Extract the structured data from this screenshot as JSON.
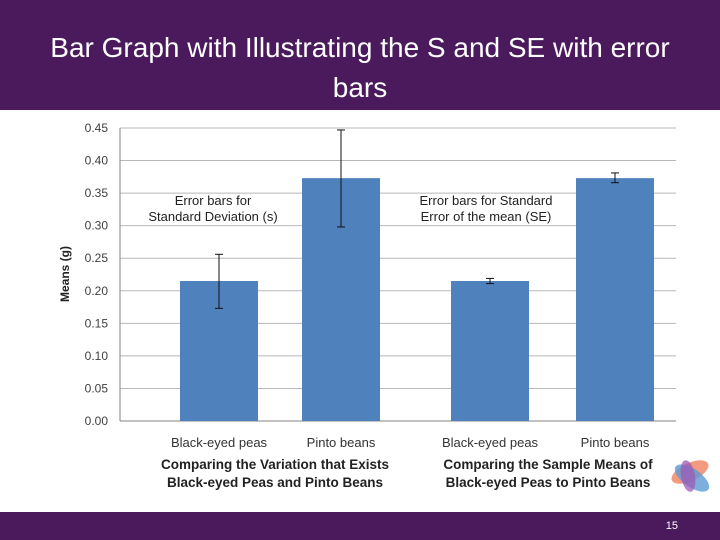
{
  "slide": {
    "title": "Bar Graph with Illustrating the S and SE with error bars",
    "page_number": "15",
    "colors": {
      "header": "#4a1a5c",
      "bar": "#4f81bd"
    }
  },
  "chart_data": {
    "type": "bar",
    "ylabel": "Means (g)",
    "ylim": [
      0,
      0.45
    ],
    "yticks": [
      "0.00",
      "0.05",
      "0.10",
      "0.15",
      "0.20",
      "0.25",
      "0.30",
      "0.35",
      "0.40",
      "0.45"
    ],
    "grid": true,
    "groups": [
      {
        "annotation": [
          "Error bars for",
          "Standard Deviation  (s)"
        ],
        "caption": [
          "Comparing the Variation that Exists",
          "Black-eyed Peas and Pinto Beans"
        ],
        "bars": [
          {
            "category": "Black-eyed peas",
            "value": 0.215,
            "error_low": 0.173,
            "error_high": 0.256
          },
          {
            "category": "Pinto beans",
            "value": 0.373,
            "error_low": 0.298,
            "error_high": 0.447
          }
        ]
      },
      {
        "annotation": [
          "Error bars for Standard",
          "Error of the mean  (SE)"
        ],
        "caption": [
          "Comparing the Sample Means of",
          "Black-eyed Peas to Pinto Beans"
        ],
        "bars": [
          {
            "category": "Black-eyed peas",
            "value": 0.215,
            "error_low": 0.211,
            "error_high": 0.219
          },
          {
            "category": "Pinto beans",
            "value": 0.373,
            "error_low": 0.366,
            "error_high": 0.381
          }
        ]
      }
    ]
  }
}
